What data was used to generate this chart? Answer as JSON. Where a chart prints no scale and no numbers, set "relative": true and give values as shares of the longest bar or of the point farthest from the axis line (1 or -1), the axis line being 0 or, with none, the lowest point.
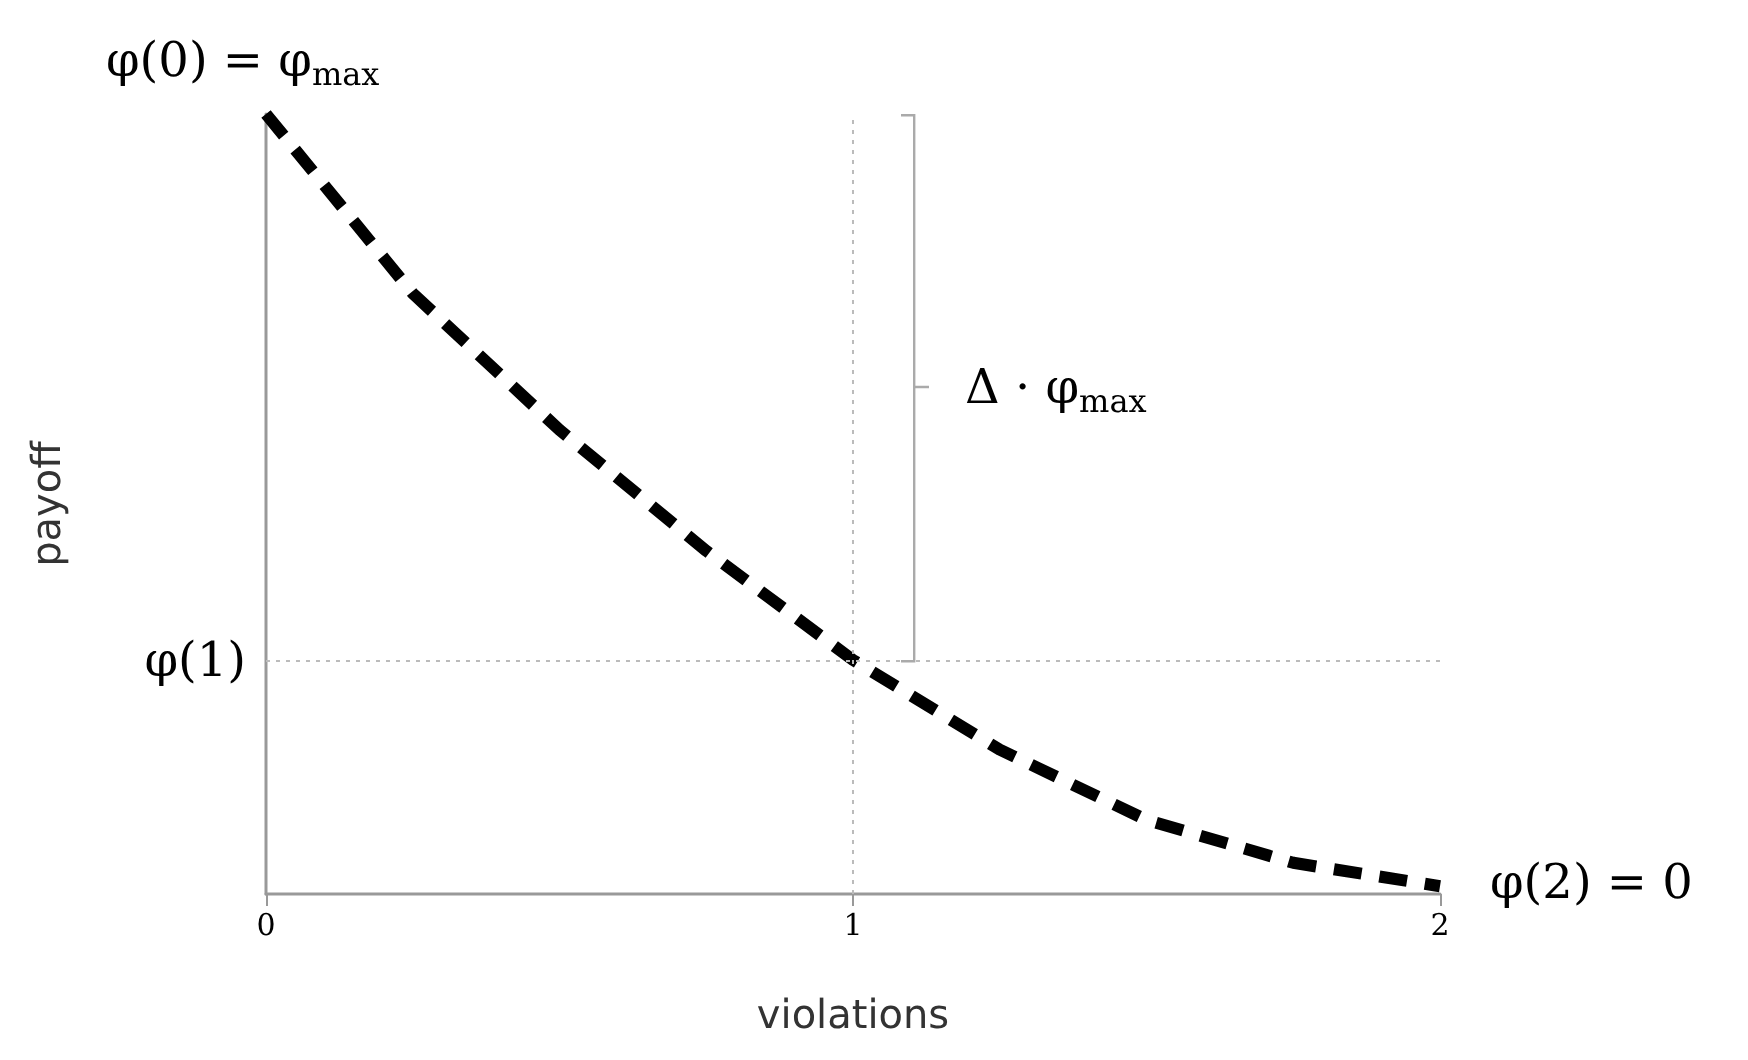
{
  "chart_data": {
    "type": "line",
    "relative": true,
    "xlabel": "violations",
    "ylabel": "payoff",
    "x": [
      0,
      0.25,
      0.5,
      0.75,
      1,
      1.25,
      1.5,
      1.75,
      2
    ],
    "xlim": [
      0,
      2
    ],
    "xticks": [
      0,
      1,
      2
    ],
    "tick_labels": "x",
    "series": [
      {
        "color": "#000000",
        "values": [
          1,
          0.77,
          0.595,
          0.44,
          0.3,
          0.185,
          0.095,
          0.04,
          0.01
        ]
      }
    ],
    "line_style": "dashed",
    "marker": "none",
    "grid": false,
    "ref_lines": [
      {
        "axis": "x",
        "value": 1,
        "color": "#bbbbbb",
        "line_style": "dotted"
      },
      {
        "axis": "y",
        "value": 0.3,
        "color": "#bbbbbb",
        "line_style": "dotted"
      }
    ],
    "annotations": [
      "φ(0) = φ$_{max}$",
      "φ(1)",
      "φ(2) = 0",
      "Δ · φ$_{max}$"
    ]
  }
}
